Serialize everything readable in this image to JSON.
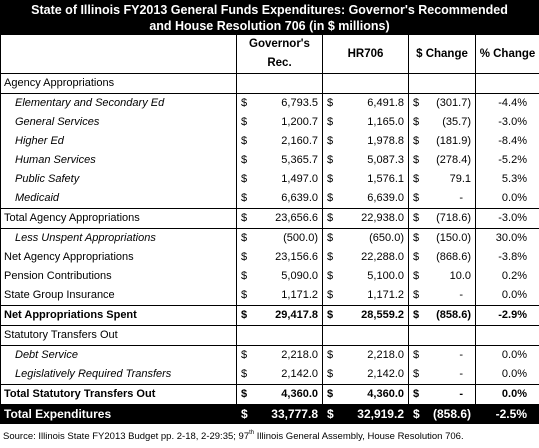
{
  "title": {
    "line1": "State of Illinois FY2013 General Funds Expenditures: Governor's Recommended",
    "line2": "and House Resolution 706 (in $ millions)"
  },
  "headers": {
    "gov": "Governor's Rec.",
    "hr": "HR706",
    "chg": "$ Change",
    "pct": "% Change"
  },
  "currency": "$",
  "rows": [
    {
      "label": "Agency Appropriations",
      "indent": false,
      "gov": "",
      "hr": "",
      "chg": "",
      "pct": "",
      "style": "section"
    },
    {
      "label": "Elementary and Secondary Ed",
      "indent": true,
      "gov": "6,793.5",
      "hr": "6,491.8",
      "chg": "(301.7)",
      "pct": "-4.4%",
      "style": "item"
    },
    {
      "label": "General Services",
      "indent": true,
      "gov": "1,200.7",
      "hr": "1,165.0",
      "chg": "(35.7)",
      "pct": "-3.0%",
      "style": "item"
    },
    {
      "label": "Higher Ed",
      "indent": true,
      "gov": "2,160.7",
      "hr": "1,978.8",
      "chg": "(181.9)",
      "pct": "-8.4%",
      "style": "item"
    },
    {
      "label": "Human Services",
      "indent": true,
      "gov": "5,365.7",
      "hr": "5,087.3",
      "chg": "(278.4)",
      "pct": "-5.2%",
      "style": "item"
    },
    {
      "label": "Public Safety",
      "indent": true,
      "gov": "1,497.0",
      "hr": "1,576.1",
      "chg": "79.1",
      "pct": "5.3%",
      "style": "item"
    },
    {
      "label": "Medicaid",
      "indent": true,
      "gov": "6,639.0",
      "hr": "6,639.0",
      "chg": "-",
      "pct": "0.0%",
      "style": "item"
    },
    {
      "label": "Total Agency Appropriations",
      "indent": false,
      "gov": "23,656.6",
      "hr": "22,938.0",
      "chg": "(718.6)",
      "pct": "-3.0%",
      "style": "item"
    },
    {
      "label": "Less Unspent Appropriations",
      "indent": true,
      "gov": "(500.0)",
      "hr": "(650.0)",
      "chg": "(150.0)",
      "pct": "30.0%",
      "style": "item"
    },
    {
      "label": "Net Agency Appropriations",
      "indent": false,
      "gov": "23,156.6",
      "hr": "22,288.0",
      "chg": "(868.6)",
      "pct": "-3.8%",
      "style": "item"
    },
    {
      "label": "Pension Contributions",
      "indent": false,
      "gov": "5,090.0",
      "hr": "5,100.0",
      "chg": "10.0",
      "pct": "0.2%",
      "style": "item"
    },
    {
      "label": "State Group Insurance",
      "indent": false,
      "gov": "1,171.2",
      "hr": "1,171.2",
      "chg": "-",
      "pct": "0.0%",
      "style": "item"
    },
    {
      "label": "Net Appropriations Spent",
      "indent": false,
      "gov": "29,417.8",
      "hr": "28,559.2",
      "chg": "(858.6)",
      "pct": "-2.9%",
      "style": "bold"
    },
    {
      "label": "Statutory Transfers Out",
      "indent": false,
      "gov": "",
      "hr": "",
      "chg": "",
      "pct": "",
      "style": "section"
    },
    {
      "label": "Debt Service",
      "indent": true,
      "gov": "2,218.0",
      "hr": "2,218.0",
      "chg": "-",
      "pct": "0.0%",
      "style": "item"
    },
    {
      "label": "Legislatively Required Transfers",
      "indent": true,
      "gov": "2,142.0",
      "hr": "2,142.0",
      "chg": "-",
      "pct": "0.0%",
      "style": "item"
    },
    {
      "label": "Total Statutory Transfers Out",
      "indent": false,
      "gov": "4,360.0",
      "hr": "4,360.0",
      "chg": "-",
      "pct": "0.0%",
      "style": "bold"
    },
    {
      "label": "Total Expenditures",
      "indent": false,
      "gov": "33,777.8",
      "hr": "32,919.2",
      "chg": "(858.6)",
      "pct": "-2.5%",
      "style": "total"
    }
  ],
  "source": {
    "before": "Source: Illinois State FY2013 Budget pp. 2-18, 2-29:35; 97",
    "sup": "th",
    "after": " Illinois General Assembly, House Resolution 706."
  }
}
